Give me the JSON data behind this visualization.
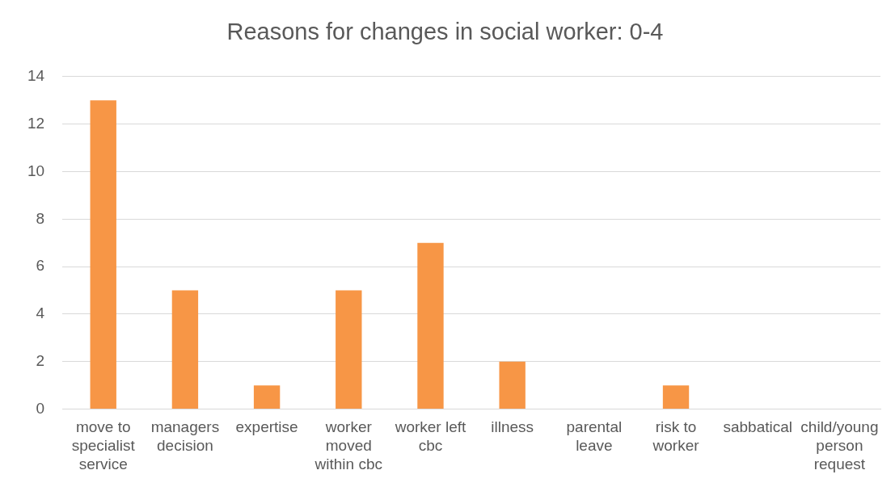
{
  "chart_data": {
    "type": "bar",
    "title": "Reasons for changes in social worker: 0-4",
    "categories": [
      "move to specialist service",
      "managers decision",
      "expertise",
      "worker moved within cbc",
      "worker left cbc",
      "illness",
      "parental leave",
      "risk to worker",
      "sabbatical",
      "child/young person request"
    ],
    "values": [
      13,
      5,
      1,
      5,
      7,
      2,
      0,
      1,
      0,
      0
    ],
    "color": "#f79646",
    "ylim": [
      0,
      14
    ],
    "yticks": [
      0,
      2,
      4,
      6,
      8,
      10,
      12,
      14
    ],
    "grid": "y",
    "legend": false
  }
}
